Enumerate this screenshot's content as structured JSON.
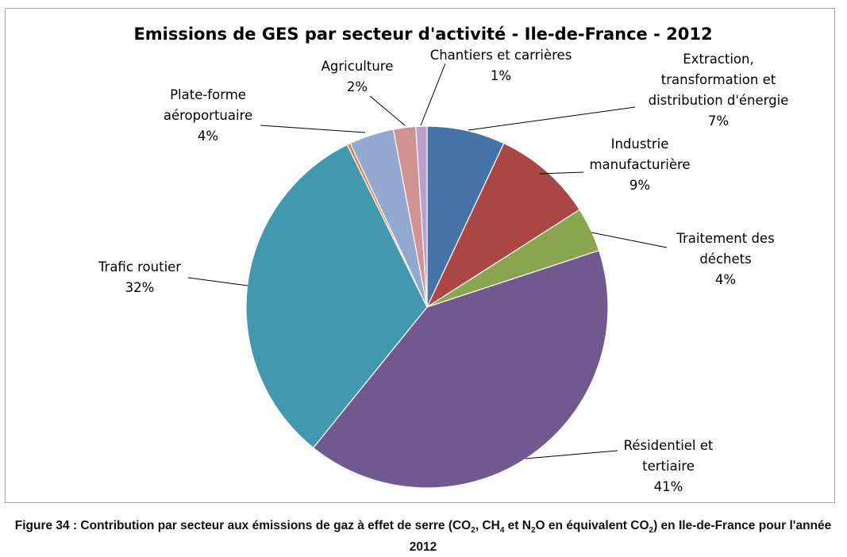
{
  "chart_data": {
    "type": "pie",
    "title": "Emissions de GES par secteur d'activité - Ile-de-France - 2012",
    "slices": [
      {
        "label": [
          "Extraction,",
          "transformation et",
          "distribution d'énergie"
        ],
        "value": 7,
        "value_label": "7%",
        "color": "#4572a7"
      },
      {
        "label": [
          "Industrie",
          "manufacturière"
        ],
        "value": 9,
        "value_label": "9%",
        "color": "#aa4643"
      },
      {
        "label": [
          "Traitement des",
          "déchets"
        ],
        "value": 4,
        "value_label": "4%",
        "color": "#89a54e"
      },
      {
        "label": [
          "Résidentiel et",
          "tertiaire"
        ],
        "value": 41,
        "value_label": "41%",
        "color": "#71588f"
      },
      {
        "label": [
          "Trafic routier"
        ],
        "value": 32,
        "value_label": "32%",
        "color": "#4198af"
      },
      {
        "label": [],
        "value": 0.3,
        "value_label": "",
        "color": "#db843d"
      },
      {
        "label": [
          "Plate-forme",
          "aéroportuaire"
        ],
        "value": 4,
        "value_label": "4%",
        "color": "#93a9cf"
      },
      {
        "label": [
          "Agriculture"
        ],
        "value": 2,
        "value_label": "2%",
        "color": "#d19392"
      },
      {
        "label": [
          "Chantiers et carrières"
        ],
        "value": 1,
        "value_label": "1%",
        "color": "#b9a0cd"
      }
    ]
  },
  "caption": {
    "part1": "Figure 34 : Contribution par secteur aux émissions de gaz à effet de serre (CO",
    "sub1": "2",
    "part2": ", CH",
    "sub2": "4",
    "part3": " et N",
    "sub3": "2",
    "part4": "O en équivalent CO",
    "sub4": "2",
    "part5": ") en Ile-de-France pour l'année 2012"
  }
}
